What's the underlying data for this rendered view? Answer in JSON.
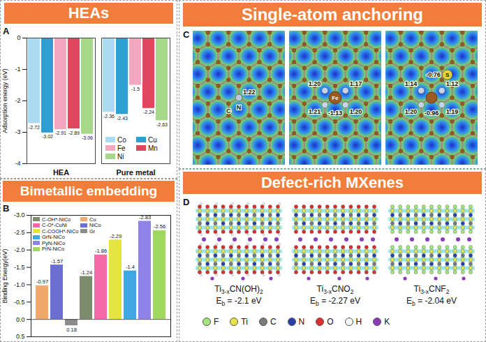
{
  "chart_data": [
    {
      "type": "bar",
      "title": "HEAs",
      "annotations": [
        "A"
      ],
      "ylabel": "Adsorption energy (eV)",
      "categories": [
        "HEA",
        "Pure metal"
      ],
      "series": [
        {
          "name": "Co",
          "color": "#a9dcf0",
          "values": [
            -2.72,
            -2.36
          ]
        },
        {
          "name": "Cu",
          "color": "#2f9fd3",
          "values": [
            -3.02,
            -2.43
          ]
        },
        {
          "name": "Fe",
          "color": "#f3a6c0",
          "values": [
            -2.91,
            -1.5
          ]
        },
        {
          "name": "Mn",
          "color": "#e0475e",
          "values": [
            -2.89,
            -2.24
          ]
        },
        {
          "name": "Ni",
          "color": "#a7d88a",
          "values": [
            -3.06,
            -2.63
          ]
        }
      ],
      "ylim": [
        -4,
        0
      ],
      "yticks": [
        0,
        -1,
        -2,
        -3,
        -4
      ],
      "data_labels": true,
      "legend": "bottom-right"
    },
    {
      "type": "bar",
      "title": "Bimetallic embedding",
      "annotations": [
        "B"
      ],
      "ylabel": "Binding Energy(eV)",
      "categories": [
        "Cu",
        "NiCo",
        "Gr",
        "C-OH*-NiCo",
        "C-O*-CuNi",
        "C-COOH*-NiCo",
        "GrN-NiCo",
        "PyN-NiCo",
        "PrN-NiCo"
      ],
      "values": [
        -0.97,
        -1.57,
        0.18,
        -1.24,
        -1.86,
        -2.29,
        -1.4,
        -2.83,
        -2.56
      ],
      "colors": [
        "#f2a86a",
        "#6b6fcf",
        "#8c8c8c",
        "#7d8c6c",
        "#f26aa8",
        "#e6e444",
        "#3fa8e0",
        "#8f82e6",
        "#9fd860"
      ],
      "ylim": [
        0.5,
        -3
      ],
      "yticks": [
        0.5,
        {
          "value": 0,
          "label": "0.0"
        },
        -0.5,
        {
          "value": -1,
          "label": "-1.0"
        },
        -1.5,
        {
          "value": -2,
          "label": "-2.0"
        },
        -2.5,
        {
          "value": -3,
          "label": "-3.0"
        }
      ],
      "tick_labels": "y",
      "data_labels": true,
      "legend": "top-left"
    }
  ],
  "diagrams": [
    {
      "title": "Single-atom anchoring",
      "letter": "C",
      "maps": [
        {
          "atoms": [
            "C",
            "N"
          ],
          "charges": [
            "1.22"
          ]
        },
        {
          "atoms": [
            "Fe"
          ],
          "charges": [
            "-1.13",
            "1.20",
            "1.17",
            "1.21",
            "1.20"
          ]
        },
        {
          "atoms": [
            "S"
          ],
          "charges": [
            "-0.76",
            "-0.96",
            "1.14",
            "1.12",
            "1.20",
            "1.19"
          ]
        }
      ]
    },
    {
      "title": "Defect-rich MXenes",
      "letter": "D",
      "structures": [
        {
          "formula": [
            "Ti",
            "3-x",
            "CN(OH)",
            "2"
          ],
          "energy": {
            "symbol": "E",
            "subscript": "b",
            "relation": "=",
            "value": "-2.1",
            "unit": "eV"
          }
        },
        {
          "formula": [
            "Ti",
            "3-x",
            "CNO",
            "2"
          ],
          "energy": {
            "symbol": "E",
            "subscript": "b",
            "relation": "=",
            "value": "-2.27",
            "unit": "eV"
          }
        },
        {
          "formula": [
            "Ti",
            "3-x",
            "CNF",
            "2"
          ],
          "energy": {
            "symbol": "E",
            "subscript": "b",
            "relation": "=",
            "value": "-2.04",
            "unit": "eV"
          }
        }
      ],
      "legend": [
        {
          "label": "F",
          "color": "#a6e37f"
        },
        {
          "label": "Ti",
          "color": "#e8e24a"
        },
        {
          "label": "C",
          "color": "#7a7a7a"
        },
        {
          "label": "N",
          "color": "#2b3fa8"
        },
        {
          "label": "O",
          "color": "#d83030"
        },
        {
          "label": "H",
          "color": "#f4f4f4"
        },
        {
          "label": "K",
          "color": "#8a3db8"
        }
      ]
    }
  ]
}
